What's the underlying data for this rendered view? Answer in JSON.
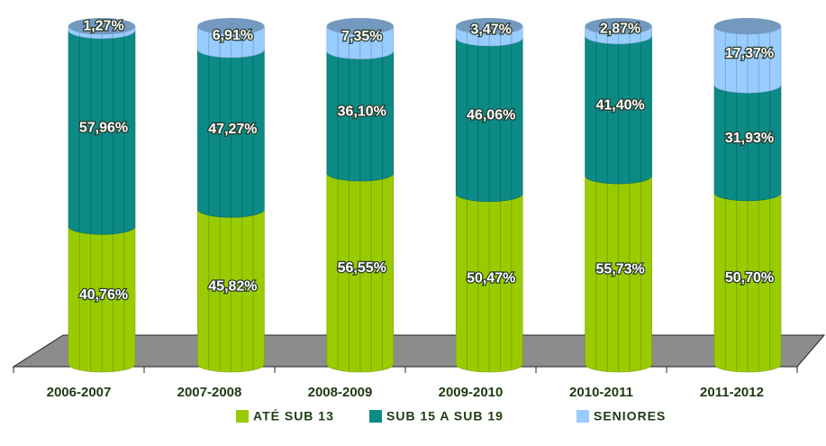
{
  "chart_data": {
    "type": "bar",
    "stacked": true,
    "categories": [
      "2006-2007",
      "2007-2008",
      "2008-2009",
      "2009-2010",
      "2010-2011",
      "2011-2012"
    ],
    "ylim": [
      0,
      100
    ],
    "series": [
      {
        "name": "ATÉ SUB 13",
        "color": "#99cc00",
        "values": [
          40.76,
          45.82,
          56.55,
          50.47,
          55.73,
          50.7
        ],
        "value_labels": [
          "40,76%",
          "45,82%",
          "56,55%",
          "50,47%",
          "55,73%",
          "50,70%"
        ]
      },
      {
        "name": "SUB 15 A SUB 19",
        "color": "#0b8a86",
        "values": [
          57.96,
          47.27,
          36.1,
          46.06,
          41.4,
          31.93
        ],
        "value_labels": [
          "57,96%",
          "47,27%",
          "36,10%",
          "46,06%",
          "41,40%",
          "31,93%"
        ]
      },
      {
        "name": "SENIORES",
        "color": "#99ccff",
        "values": [
          1.27,
          6.91,
          7.35,
          3.47,
          2.87,
          17.37
        ],
        "value_labels": [
          "1,27%",
          "6,91%",
          "7,35%",
          "3,47%",
          "2,87%",
          "17,37%"
        ]
      }
    ],
    "legend": "bottom"
  }
}
